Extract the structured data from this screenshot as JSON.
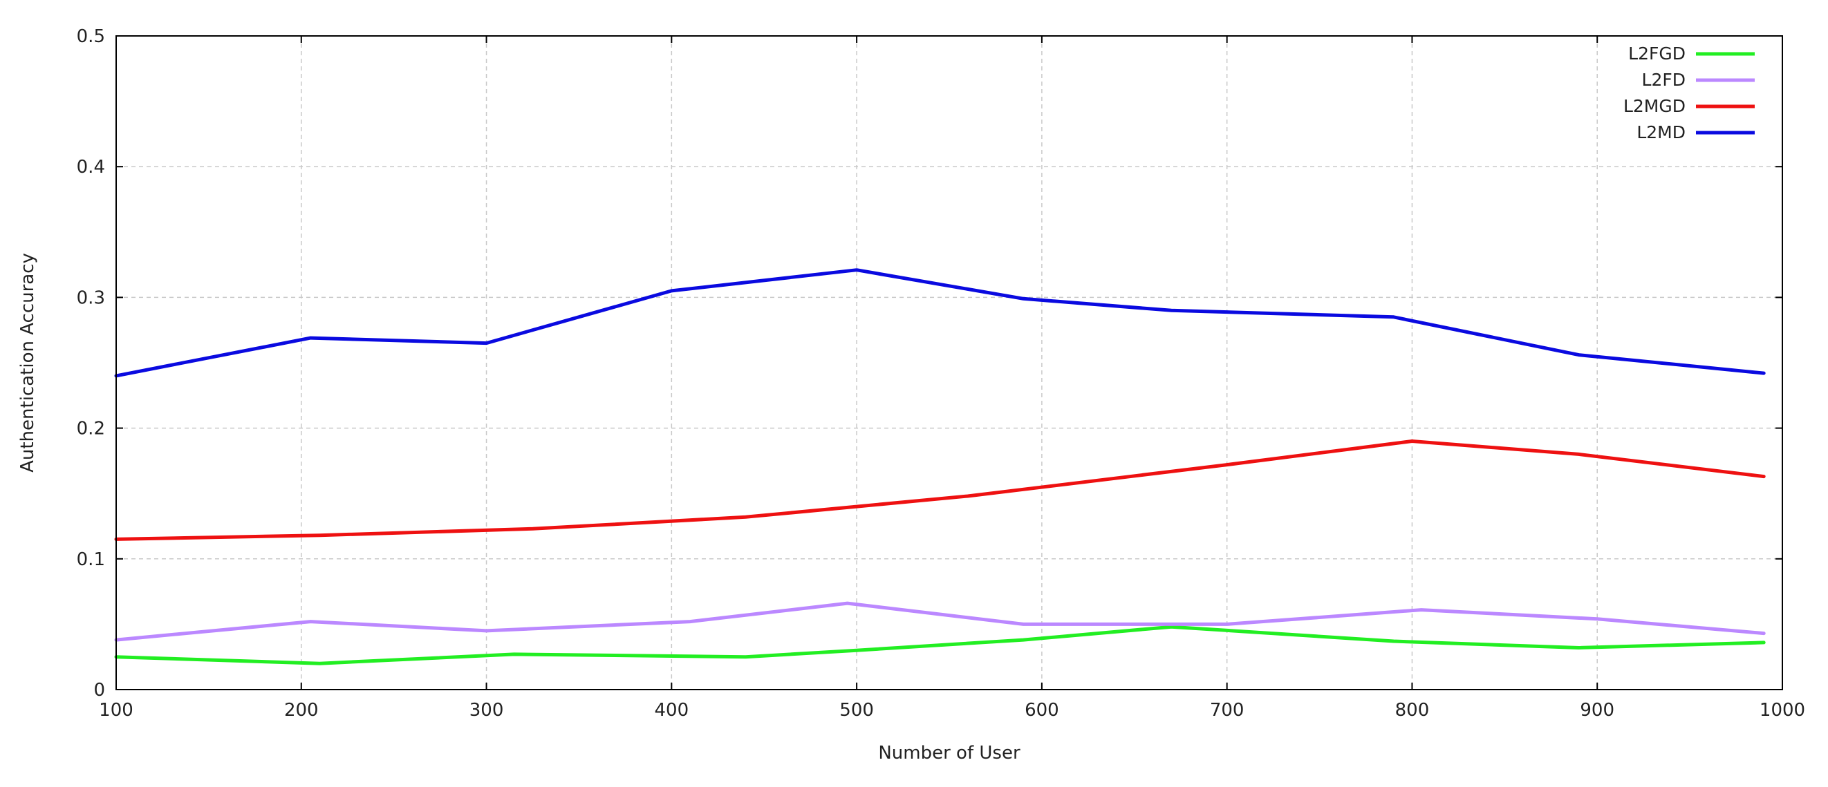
{
  "chart_data": {
    "type": "line",
    "title": "",
    "xlabel": "Number of User",
    "ylabel": "Authentication Accuracy",
    "xlim": [
      100,
      1000
    ],
    "ylim": [
      0,
      0.5
    ],
    "xticks": [
      100,
      200,
      300,
      400,
      500,
      600,
      700,
      800,
      900,
      1000
    ],
    "yticks": [
      0,
      0.1,
      0.2,
      0.3,
      0.4,
      0.5
    ],
    "grid": true,
    "legend_position": "top-right",
    "series": [
      {
        "name": "L2FGD",
        "color": "#22ee22",
        "points": [
          [
            100,
            0.025
          ],
          [
            210,
            0.02
          ],
          [
            315,
            0.027
          ],
          [
            440,
            0.025
          ],
          [
            500,
            0.03
          ],
          [
            590,
            0.038
          ],
          [
            670,
            0.048
          ],
          [
            790,
            0.037
          ],
          [
            890,
            0.032
          ],
          [
            990,
            0.036
          ]
        ]
      },
      {
        "name": "L2FD",
        "color": "#bb88ff",
        "points": [
          [
            100,
            0.038
          ],
          [
            205,
            0.052
          ],
          [
            300,
            0.045
          ],
          [
            410,
            0.052
          ],
          [
            495,
            0.066
          ],
          [
            590,
            0.05
          ],
          [
            700,
            0.05
          ],
          [
            805,
            0.061
          ],
          [
            900,
            0.054
          ],
          [
            990,
            0.043
          ]
        ]
      },
      {
        "name": "L2MGD",
        "color": "#ee1111",
        "points": [
          [
            100,
            0.115
          ],
          [
            210,
            0.118
          ],
          [
            325,
            0.123
          ],
          [
            440,
            0.132
          ],
          [
            500,
            0.14
          ],
          [
            560,
            0.148
          ],
          [
            700,
            0.172
          ],
          [
            800,
            0.19
          ],
          [
            890,
            0.18
          ],
          [
            990,
            0.163
          ]
        ]
      },
      {
        "name": "L2MD",
        "color": "#0a0ae0",
        "points": [
          [
            100,
            0.24
          ],
          [
            205,
            0.269
          ],
          [
            300,
            0.265
          ],
          [
            400,
            0.305
          ],
          [
            500,
            0.321
          ],
          [
            590,
            0.299
          ],
          [
            670,
            0.29
          ],
          [
            790,
            0.285
          ],
          [
            890,
            0.256
          ],
          [
            990,
            0.242
          ]
        ]
      }
    ]
  }
}
